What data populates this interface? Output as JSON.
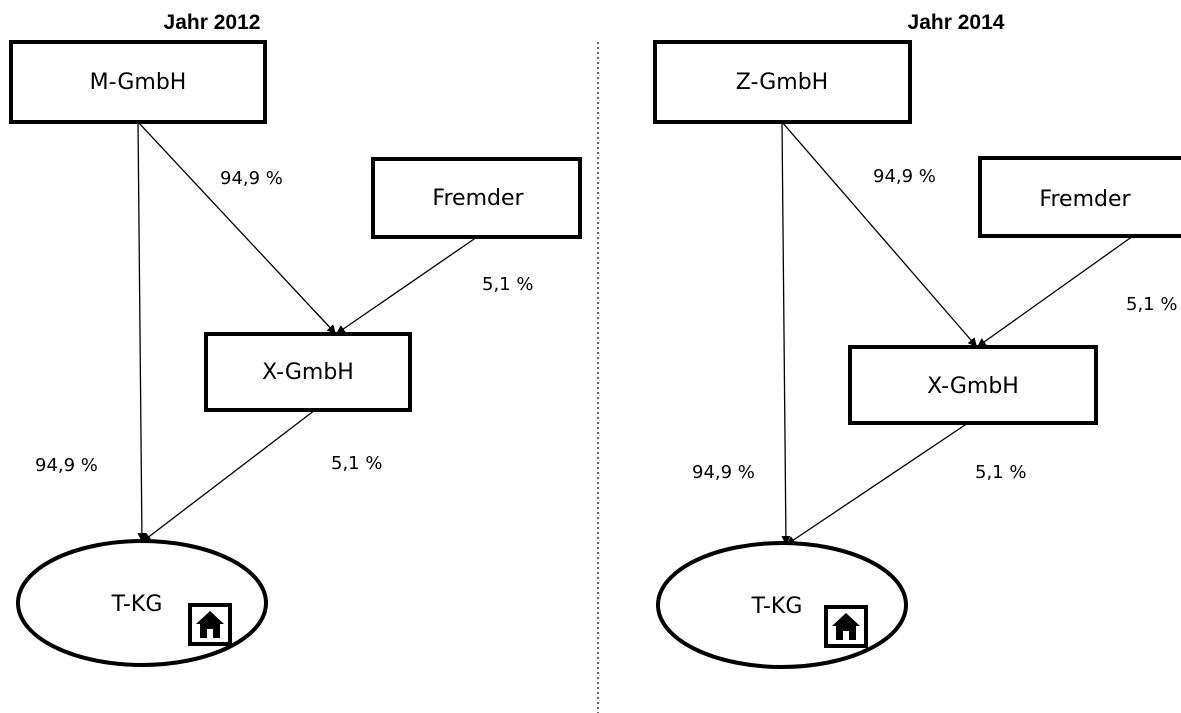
{
  "panels": [
    {
      "title": "Jahr 2012",
      "top_company": "M-GmbH",
      "third_party": "Fremder",
      "middle_company": "X-GmbH",
      "target": "T-KG",
      "top_to_middle_pct": "94,9 %",
      "third_to_middle_pct": "5,1 %",
      "top_to_target_pct": "94,9 %",
      "middle_to_target_pct": "5,1 %"
    },
    {
      "title": "Jahr 2014",
      "top_company": "Z-GmbH",
      "third_party": "Fremder",
      "middle_company": "X-GmbH",
      "target": "T-KG",
      "top_to_middle_pct": "94,9 %",
      "third_to_middle_pct": "5,1 %",
      "top_to_target_pct": "94,9 %",
      "middle_to_target_pct": "5,1 %"
    }
  ],
  "icons": {
    "target_badge": "house-icon"
  }
}
